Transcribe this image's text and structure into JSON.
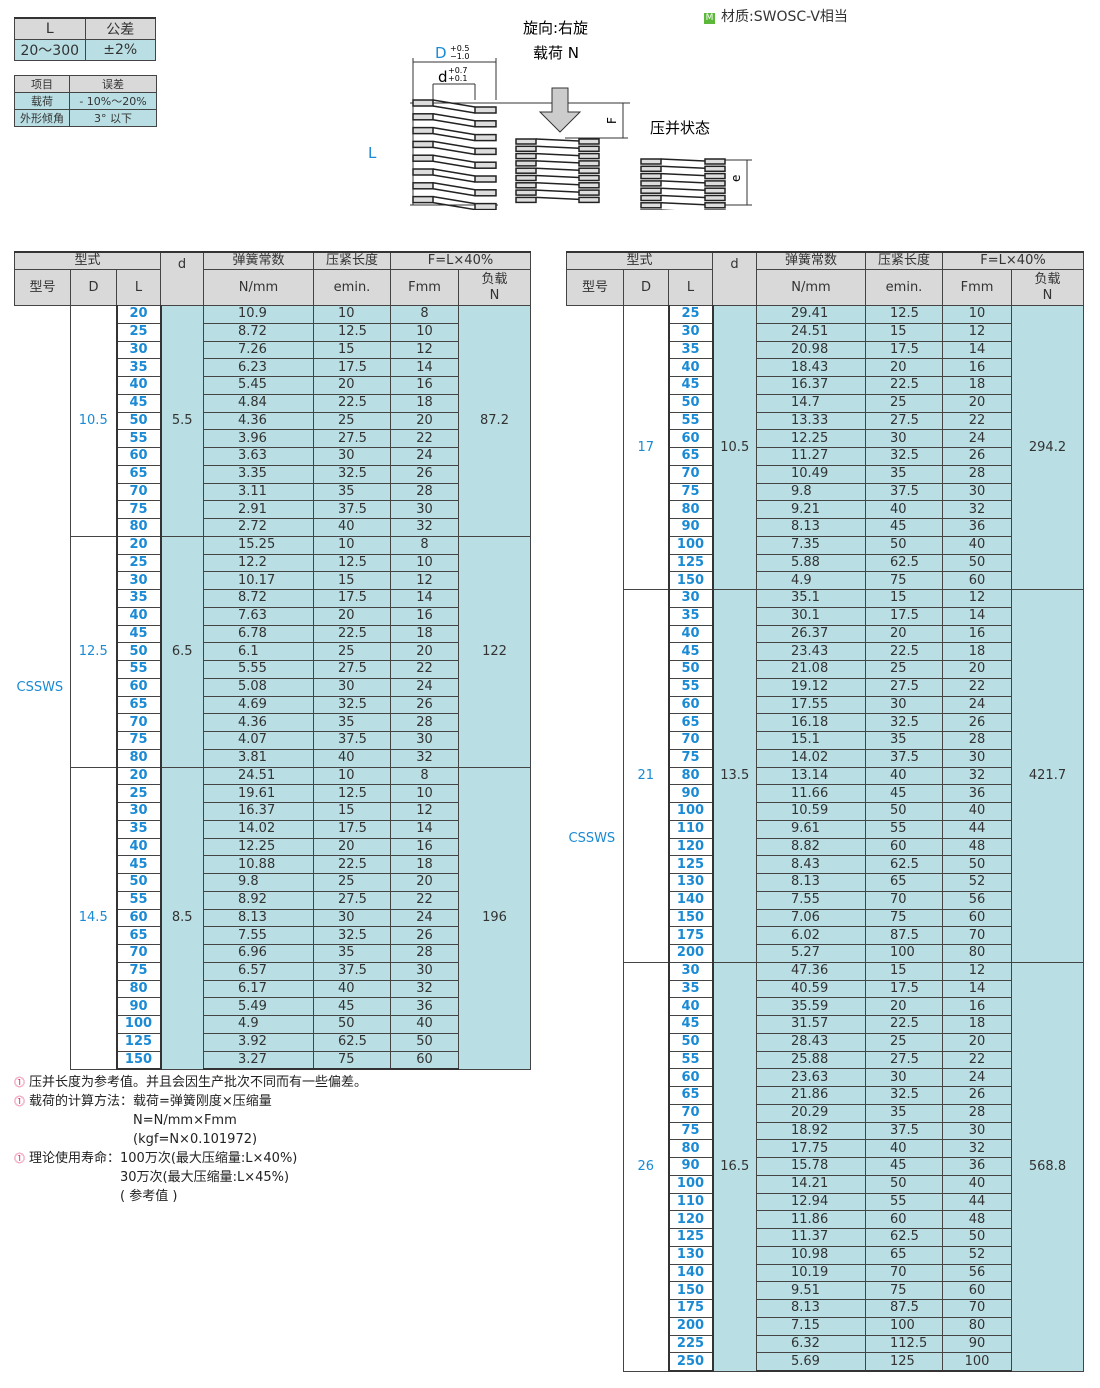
{
  "tolerance": {
    "headers": [
      "L",
      "公差"
    ],
    "row": [
      "20～300",
      "±2%"
    ]
  },
  "error_table": {
    "headers": [
      "项目",
      "误差"
    ],
    "rows": [
      [
        "载荷",
        "- 10%～20%"
      ],
      [
        "外形倾角",
        "3°  以下"
      ]
    ]
  },
  "material": {
    "badge": "M",
    "text": "材质:SWOSC-V相当",
    "badge_color": "#5cb83a"
  },
  "diagram": {
    "rotation": "旋向:右旋",
    "load": "载荷 N",
    "D": "D",
    "D_tol_upper": "+0.5",
    "D_tol_lower": "−1.0",
    "d": "d",
    "d_tol_upper": "+0.7",
    "d_tol_lower": "+0.1",
    "L": "L",
    "F": "F",
    "e": "e",
    "compressed_label": "压并状态"
  },
  "table_headers": {
    "type": "型式",
    "model": "型号",
    "D": "D",
    "L": "L",
    "d": "d",
    "spring_const": "弹簧常数",
    "spring_unit": "N/mm",
    "solid_length": "压紧长度",
    "solid_unit": "emin.",
    "F_group": "F=L×40%",
    "F_unit": "Fmm",
    "load": "负载",
    "load_unit": "N"
  },
  "colors": {
    "header_bg": "#d9d9d9",
    "cell_bg": "#b9dfe4",
    "accent_blue": "#1a8ad4"
  },
  "tables": [
    {
      "model": "CSSWS",
      "groups": [
        {
          "D": "10.5",
          "d": "5.5",
          "load": "87.2",
          "rows": [
            [
              "20",
              "10.9",
              "10",
              "8"
            ],
            [
              "25",
              "8.72",
              "12.5",
              "10"
            ],
            [
              "30",
              "7.26",
              "15",
              "12"
            ],
            [
              "35",
              "6.23",
              "17.5",
              "14"
            ],
            [
              "40",
              "5.45",
              "20",
              "16"
            ],
            [
              "45",
              "4.84",
              "22.5",
              "18"
            ],
            [
              "50",
              "4.36",
              "25",
              "20"
            ],
            [
              "55",
              "3.96",
              "27.5",
              "22"
            ],
            [
              "60",
              "3.63",
              "30",
              "24"
            ],
            [
              "65",
              "3.35",
              "32.5",
              "26"
            ],
            [
              "70",
              "3.11",
              "35",
              "28"
            ],
            [
              "75",
              "2.91",
              "37.5",
              "30"
            ],
            [
              "80",
              "2.72",
              "40",
              "32"
            ]
          ]
        },
        {
          "D": "12.5",
          "d": "6.5",
          "load": "122",
          "rows": [
            [
              "20",
              "15.25",
              "10",
              "8"
            ],
            [
              "25",
              "12.2",
              "12.5",
              "10"
            ],
            [
              "30",
              "10.17",
              "15",
              "12"
            ],
            [
              "35",
              "8.72",
              "17.5",
              "14"
            ],
            [
              "40",
              "7.63",
              "20",
              "16"
            ],
            [
              "45",
              "6.78",
              "22.5",
              "18"
            ],
            [
              "50",
              "6.1",
              "25",
              "20"
            ],
            [
              "55",
              "5.55",
              "27.5",
              "22"
            ],
            [
              "60",
              "5.08",
              "30",
              "24"
            ],
            [
              "65",
              "4.69",
              "32.5",
              "26"
            ],
            [
              "70",
              "4.36",
              "35",
              "28"
            ],
            [
              "75",
              "4.07",
              "37.5",
              "30"
            ],
            [
              "80",
              "3.81",
              "40",
              "32"
            ]
          ]
        },
        {
          "D": "14.5",
          "d": "8.5",
          "load": "196",
          "rows": [
            [
              "20",
              "24.51",
              "10",
              "8"
            ],
            [
              "25",
              "19.61",
              "12.5",
              "10"
            ],
            [
              "30",
              "16.37",
              "15",
              "12"
            ],
            [
              "35",
              "14.02",
              "17.5",
              "14"
            ],
            [
              "40",
              "12.25",
              "20",
              "16"
            ],
            [
              "45",
              "10.88",
              "22.5",
              "18"
            ],
            [
              "50",
              "9.8",
              "25",
              "20"
            ],
            [
              "55",
              "8.92",
              "27.5",
              "22"
            ],
            [
              "60",
              "8.13",
              "30",
              "24"
            ],
            [
              "65",
              "7.55",
              "32.5",
              "26"
            ],
            [
              "70",
              "6.96",
              "35",
              "28"
            ],
            [
              "75",
              "6.57",
              "37.5",
              "30"
            ],
            [
              "80",
              "6.17",
              "40",
              "32"
            ],
            [
              "90",
              "5.49",
              "45",
              "36"
            ],
            [
              "100",
              "4.9",
              "50",
              "40"
            ],
            [
              "125",
              "3.92",
              "62.5",
              "50"
            ],
            [
              "150",
              "3.27",
              "75",
              "60"
            ]
          ]
        }
      ]
    },
    {
      "model": "CSSWS",
      "groups": [
        {
          "D": "17",
          "d": "10.5",
          "load": "294.2",
          "rows": [
            [
              "25",
              "29.41",
              "12.5",
              "10"
            ],
            [
              "30",
              "24.51",
              "15",
              "12"
            ],
            [
              "35",
              "20.98",
              "17.5",
              "14"
            ],
            [
              "40",
              "18.43",
              "20",
              "16"
            ],
            [
              "45",
              "16.37",
              "22.5",
              "18"
            ],
            [
              "50",
              "14.7",
              "25",
              "20"
            ],
            [
              "55",
              "13.33",
              "27.5",
              "22"
            ],
            [
              "60",
              "12.25",
              "30",
              "24"
            ],
            [
              "65",
              "11.27",
              "32.5",
              "26"
            ],
            [
              "70",
              "10.49",
              "35",
              "28"
            ],
            [
              "75",
              "9.8",
              "37.5",
              "30"
            ],
            [
              "80",
              "9.21",
              "40",
              "32"
            ],
            [
              "90",
              "8.13",
              "45",
              "36"
            ],
            [
              "100",
              "7.35",
              "50",
              "40"
            ],
            [
              "125",
              "5.88",
              "62.5",
              "50"
            ],
            [
              "150",
              "4.9",
              "75",
              "60"
            ]
          ]
        },
        {
          "D": "21",
          "d": "13.5",
          "load": "421.7",
          "rows": [
            [
              "30",
              "35.1",
              "15",
              "12"
            ],
            [
              "35",
              "30.1",
              "17.5",
              "14"
            ],
            [
              "40",
              "26.37",
              "20",
              "16"
            ],
            [
              "45",
              "23.43",
              "22.5",
              "18"
            ],
            [
              "50",
              "21.08",
              "25",
              "20"
            ],
            [
              "55",
              "19.12",
              "27.5",
              "22"
            ],
            [
              "60",
              "17.55",
              "30",
              "24"
            ],
            [
              "65",
              "16.18",
              "32.5",
              "26"
            ],
            [
              "70",
              "15.1",
              "35",
              "28"
            ],
            [
              "75",
              "14.02",
              "37.5",
              "30"
            ],
            [
              "80",
              "13.14",
              "40",
              "32"
            ],
            [
              "90",
              "11.66",
              "45",
              "36"
            ],
            [
              "100",
              "10.59",
              "50",
              "40"
            ],
            [
              "110",
              "9.61",
              "55",
              "44"
            ],
            [
              "120",
              "8.82",
              "60",
              "48"
            ],
            [
              "125",
              "8.43",
              "62.5",
              "50"
            ],
            [
              "130",
              "8.13",
              "65",
              "52"
            ],
            [
              "140",
              "7.55",
              "70",
              "56"
            ],
            [
              "150",
              "7.06",
              "75",
              "60"
            ],
            [
              "175",
              "6.02",
              "87.5",
              "70"
            ],
            [
              "200",
              "5.27",
              "100",
              "80"
            ]
          ]
        },
        {
          "D": "26",
          "d": "16.5",
          "load": "568.8",
          "rows": [
            [
              "30",
              "47.36",
              "15",
              "12"
            ],
            [
              "35",
              "40.59",
              "17.5",
              "14"
            ],
            [
              "40",
              "35.59",
              "20",
              "16"
            ],
            [
              "45",
              "31.57",
              "22.5",
              "18"
            ],
            [
              "50",
              "28.43",
              "25",
              "20"
            ],
            [
              "55",
              "25.88",
              "27.5",
              "22"
            ],
            [
              "60",
              "23.63",
              "30",
              "24"
            ],
            [
              "65",
              "21.86",
              "32.5",
              "26"
            ],
            [
              "70",
              "20.29",
              "35",
              "28"
            ],
            [
              "75",
              "18.92",
              "37.5",
              "30"
            ],
            [
              "80",
              "17.75",
              "40",
              "32"
            ],
            [
              "90",
              "15.78",
              "45",
              "36"
            ],
            [
              "100",
              "14.21",
              "50",
              "40"
            ],
            [
              "110",
              "12.94",
              "55",
              "44"
            ],
            [
              "120",
              "11.86",
              "60",
              "48"
            ],
            [
              "125",
              "11.37",
              "62.5",
              "50"
            ],
            [
              "130",
              "10.98",
              "65",
              "52"
            ],
            [
              "140",
              "10.19",
              "70",
              "56"
            ],
            [
              "150",
              "9.51",
              "75",
              "60"
            ],
            [
              "175",
              "8.13",
              "87.5",
              "70"
            ],
            [
              "200",
              "7.15",
              "100",
              "80"
            ],
            [
              "225",
              "6.32",
              "112.5",
              "90"
            ],
            [
              "250",
              "5.69",
              "125",
              "100"
            ]
          ]
        }
      ]
    }
  ],
  "notes": [
    {
      "lines": [
        "压并长度为参考值。并且会因生产批次不同而有一些偏差。"
      ]
    },
    {
      "label": "载荷的计算方法：",
      "lines": [
        "载荷=弹簧刚度×压缩量",
        "N=N/mm×Fmm",
        "(kgf=N×0.101972)"
      ]
    },
    {
      "label": "理论使用寿命：",
      "lines": [
        "100万次(最大压缩量:L×40%)",
        "30万次(最大压缩量:L×45%)",
        "( 参考值 )"
      ]
    }
  ]
}
